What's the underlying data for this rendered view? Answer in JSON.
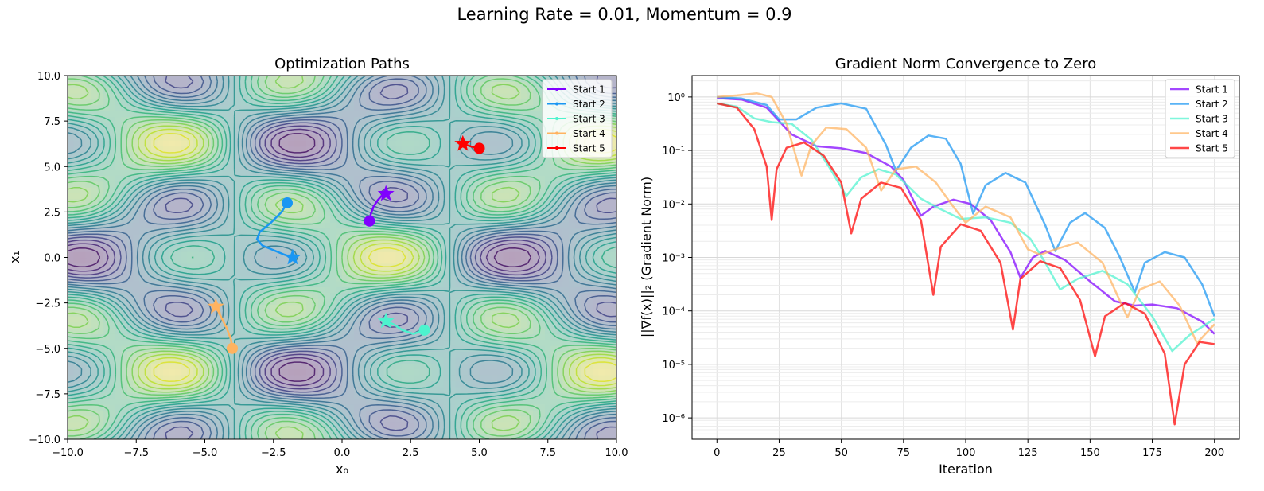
{
  "figure": {
    "suptitle": "Learning Rate = 0.01, Momentum = 0.9"
  },
  "chart_data": [
    {
      "type": "contour",
      "title": "Optimization Paths",
      "xlabel": "x₀",
      "ylabel": "x₁",
      "xlim": [
        -10,
        10
      ],
      "ylim": [
        -10,
        10
      ],
      "xticks": [
        -10,
        -7.5,
        -5,
        -2.5,
        0,
        2.5,
        5,
        7.5,
        10
      ],
      "yticks": [
        -10,
        -7.5,
        -5,
        -2.5,
        0,
        2.5,
        5,
        7.5,
        10
      ],
      "xtick_labels": [
        "−10.0",
        "−7.5",
        "−5.0",
        "−2.5",
        "0.0",
        "2.5",
        "5.0",
        "7.5",
        "10.0"
      ],
      "ytick_labels": [
        "−10.0",
        "−7.5",
        "−5.0",
        "−2.5",
        "0.0",
        "2.5",
        "5.0",
        "7.5",
        "10.0"
      ],
      "colormap": "viridis",
      "legend": "top-right",
      "series": [
        {
          "name": "Start 1",
          "color": "#8000ff",
          "start": [
            1.0,
            2.0
          ],
          "end": [
            1.6,
            3.5
          ],
          "path": [
            [
              1.0,
              2.0
            ],
            [
              1.05,
              2.4
            ],
            [
              1.15,
              2.8
            ],
            [
              1.3,
              3.15
            ],
            [
              1.45,
              3.4
            ],
            [
              1.6,
              3.5
            ]
          ]
        },
        {
          "name": "Start 2",
          "color": "#1996f3",
          "start": [
            -2.0,
            3.0
          ],
          "end": [
            -1.8,
            0.0
          ],
          "path": [
            [
              -2.0,
              3.0
            ],
            [
              -2.2,
              2.5
            ],
            [
              -2.6,
              1.9
            ],
            [
              -3.0,
              1.4
            ],
            [
              -3.1,
              1.0
            ],
            [
              -2.9,
              0.65
            ],
            [
              -2.5,
              0.4
            ],
            [
              -2.1,
              0.15
            ],
            [
              -1.8,
              0.0
            ]
          ]
        },
        {
          "name": "Start 3",
          "color": "#4df3ce",
          "start": [
            3.0,
            -4.0
          ],
          "end": [
            1.6,
            -3.5
          ],
          "path": [
            [
              3.0,
              -4.0
            ],
            [
              2.6,
              -4.2
            ],
            [
              2.2,
              -4.0
            ],
            [
              1.9,
              -3.7
            ],
            [
              1.6,
              -3.5
            ]
          ]
        },
        {
          "name": "Start 4",
          "color": "#ffb360",
          "start": [
            -4.0,
            -5.0
          ],
          "end": [
            -4.6,
            -2.7
          ],
          "path": [
            [
              -4.0,
              -5.0
            ],
            [
              -4.05,
              -4.5
            ],
            [
              -4.2,
              -3.9
            ],
            [
              -4.4,
              -3.3
            ],
            [
              -4.6,
              -2.7
            ]
          ]
        },
        {
          "name": "Start 5",
          "color": "#ff0000",
          "start": [
            5.0,
            6.0
          ],
          "end": [
            4.4,
            6.25
          ],
          "path": [
            [
              5.0,
              6.0
            ],
            [
              4.7,
              6.1
            ],
            [
              4.4,
              6.25
            ]
          ]
        }
      ]
    },
    {
      "type": "line",
      "title": "Gradient Norm Convergence to Zero",
      "xlabel": "Iteration",
      "ylabel": "||∇f(x)||₂ (Gradient Norm)",
      "xlim": [
        -10,
        210
      ],
      "ylim_log10": [
        -6.4,
        0.4
      ],
      "yscale": "log",
      "grid": true,
      "legend": "top-right",
      "xticks": [
        0,
        25,
        50,
        75,
        100,
        125,
        150,
        175,
        200
      ],
      "xtick_labels": [
        "0",
        "25",
        "50",
        "75",
        "100",
        "125",
        "150",
        "175",
        "200"
      ],
      "yticks_log10": [
        0,
        -1,
        -2,
        -3,
        -4,
        -5,
        -6
      ],
      "ytick_labels": [
        "10⁰",
        "10⁻¹",
        "10⁻²",
        "10⁻³",
        "10⁻⁴",
        "10⁻⁵",
        "10⁻⁶"
      ],
      "series": [
        {
          "name": "Start 1",
          "color": "#8000ff",
          "log10_points": [
            [
              0,
              -0.02
            ],
            [
              10,
              -0.05
            ],
            [
              20,
              -0.2
            ],
            [
              30,
              -0.7
            ],
            [
              40,
              -0.92
            ],
            [
              50,
              -0.96
            ],
            [
              60,
              -1.05
            ],
            [
              70,
              -1.3
            ],
            [
              75,
              -1.55
            ],
            [
              82,
              -2.22
            ],
            [
              87,
              -2.05
            ],
            [
              95,
              -1.92
            ],
            [
              102,
              -2.0
            ],
            [
              110,
              -2.3
            ],
            [
              118,
              -2.9
            ],
            [
              122,
              -3.38
            ],
            [
              127,
              -3.0
            ],
            [
              132,
              -2.88
            ],
            [
              140,
              -3.05
            ],
            [
              150,
              -3.45
            ],
            [
              160,
              -3.82
            ],
            [
              168,
              -3.9
            ],
            [
              175,
              -3.88
            ],
            [
              185,
              -3.95
            ],
            [
              195,
              -4.2
            ],
            [
              200,
              -4.43
            ]
          ]
        },
        {
          "name": "Start 2",
          "color": "#1996f3",
          "log10_points": [
            [
              0,
              0.0
            ],
            [
              10,
              -0.03
            ],
            [
              20,
              -0.15
            ],
            [
              25,
              -0.42
            ],
            [
              32,
              -0.42
            ],
            [
              40,
              -0.2
            ],
            [
              50,
              -0.12
            ],
            [
              60,
              -0.22
            ],
            [
              68,
              -0.9
            ],
            [
              72,
              -1.38
            ],
            [
              78,
              -0.95
            ],
            [
              85,
              -0.72
            ],
            [
              92,
              -0.78
            ],
            [
              98,
              -1.25
            ],
            [
              103,
              -2.18
            ],
            [
              108,
              -1.65
            ],
            [
              116,
              -1.42
            ],
            [
              124,
              -1.6
            ],
            [
              132,
              -2.4
            ],
            [
              136,
              -2.88
            ],
            [
              142,
              -2.35
            ],
            [
              148,
              -2.17
            ],
            [
              156,
              -2.45
            ],
            [
              162,
              -3.0
            ],
            [
              168,
              -3.65
            ],
            [
              172,
              -3.1
            ],
            [
              180,
              -2.9
            ],
            [
              188,
              -3.0
            ],
            [
              195,
              -3.5
            ],
            [
              200,
              -4.1
            ]
          ]
        },
        {
          "name": "Start 3",
          "color": "#4df3ce",
          "log10_points": [
            [
              0,
              -0.12
            ],
            [
              8,
              -0.18
            ],
            [
              15,
              -0.4
            ],
            [
              22,
              -0.47
            ],
            [
              30,
              -0.5
            ],
            [
              38,
              -0.8
            ],
            [
              45,
              -1.3
            ],
            [
              52,
              -1.85
            ],
            [
              58,
              -1.5
            ],
            [
              65,
              -1.35
            ],
            [
              72,
              -1.45
            ],
            [
              82,
              -1.9
            ],
            [
              90,
              -2.1
            ],
            [
              98,
              -2.28
            ],
            [
              108,
              -2.25
            ],
            [
              118,
              -2.35
            ],
            [
              126,
              -2.65
            ],
            [
              132,
              -3.1
            ],
            [
              138,
              -3.6
            ],
            [
              145,
              -3.4
            ],
            [
              155,
              -3.25
            ],
            [
              165,
              -3.5
            ],
            [
              175,
              -4.1
            ],
            [
              183,
              -4.75
            ],
            [
              190,
              -4.45
            ],
            [
              200,
              -4.15
            ]
          ]
        },
        {
          "name": "Start 4",
          "color": "#ffb360",
          "log10_points": [
            [
              0,
              0.0
            ],
            [
              8,
              0.03
            ],
            [
              16,
              0.07
            ],
            [
              22,
              0.0
            ],
            [
              28,
              -0.5
            ],
            [
              32,
              -1.15
            ],
            [
              34,
              -1.47
            ],
            [
              38,
              -0.9
            ],
            [
              44,
              -0.57
            ],
            [
              52,
              -0.6
            ],
            [
              60,
              -0.95
            ],
            [
              66,
              -1.75
            ],
            [
              72,
              -1.35
            ],
            [
              80,
              -1.3
            ],
            [
              88,
              -1.6
            ],
            [
              95,
              -2.05
            ],
            [
              100,
              -2.35
            ],
            [
              108,
              -2.05
            ],
            [
              118,
              -2.25
            ],
            [
              125,
              -2.85
            ],
            [
              130,
              -2.95
            ],
            [
              136,
              -2.85
            ],
            [
              145,
              -2.72
            ],
            [
              155,
              -3.1
            ],
            [
              165,
              -4.12
            ],
            [
              170,
              -3.6
            ],
            [
              178,
              -3.45
            ],
            [
              186,
              -3.9
            ],
            [
              193,
              -4.6
            ],
            [
              200,
              -4.25
            ]
          ]
        },
        {
          "name": "Start 5",
          "color": "#ff0000",
          "log10_points": [
            [
              0,
              -0.12
            ],
            [
              8,
              -0.2
            ],
            [
              15,
              -0.6
            ],
            [
              20,
              -1.3
            ],
            [
              22,
              -2.3
            ],
            [
              24,
              -1.35
            ],
            [
              28,
              -0.95
            ],
            [
              35,
              -0.85
            ],
            [
              43,
              -1.1
            ],
            [
              50,
              -1.6
            ],
            [
              54,
              -2.55
            ],
            [
              58,
              -1.9
            ],
            [
              66,
              -1.6
            ],
            [
              74,
              -1.7
            ],
            [
              82,
              -2.3
            ],
            [
              87,
              -3.7
            ],
            [
              90,
              -2.8
            ],
            [
              98,
              -2.38
            ],
            [
              106,
              -2.5
            ],
            [
              114,
              -3.1
            ],
            [
              119,
              -4.35
            ],
            [
              122,
              -3.4
            ],
            [
              130,
              -3.07
            ],
            [
              138,
              -3.2
            ],
            [
              146,
              -3.8
            ],
            [
              152,
              -4.85
            ],
            [
              156,
              -4.1
            ],
            [
              164,
              -3.85
            ],
            [
              172,
              -4.05
            ],
            [
              180,
              -4.8
            ],
            [
              184,
              -6.12
            ],
            [
              188,
              -5.0
            ],
            [
              194,
              -4.58
            ],
            [
              200,
              -4.62
            ]
          ]
        }
      ]
    }
  ]
}
